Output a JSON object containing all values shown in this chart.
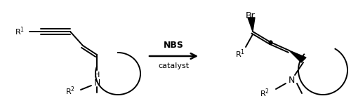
{
  "background_color": "#ffffff",
  "figsize": [
    5.0,
    1.54
  ],
  "dpi": 100,
  "xlim": [
    0,
    500
  ],
  "ylim": [
    0,
    154
  ],
  "arrow": {
    "x_start": 210,
    "x_end": 285,
    "y": 80,
    "label_top": "NBS",
    "label_bottom": "catalyst",
    "fontsize": 9
  },
  "text_color": "#000000",
  "line_color": "#000000",
  "line_width": 1.4
}
